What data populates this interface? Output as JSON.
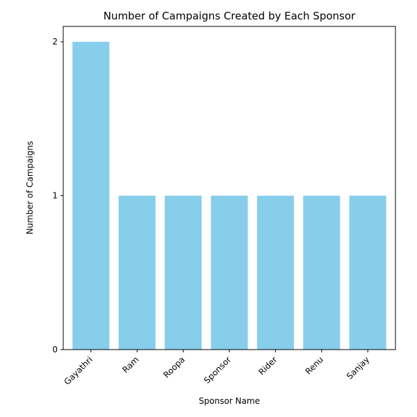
{
  "chart_data": {
    "type": "bar",
    "title": "Number of Campaigns Created by Each Sponsor",
    "xlabel": "Sponsor Name",
    "ylabel": "Number of Campaigns",
    "categories": [
      "Gayathri",
      "Ram",
      "Roopa",
      "Sponsor",
      "Rider",
      "Renu",
      "Sanjay"
    ],
    "values": [
      2,
      1,
      1,
      1,
      1,
      1,
      1
    ],
    "ylim": [
      0,
      2.1
    ],
    "yticks": [
      0,
      1,
      2
    ],
    "bar_color": "#87CEEB",
    "grid": false,
    "legend": "none"
  }
}
